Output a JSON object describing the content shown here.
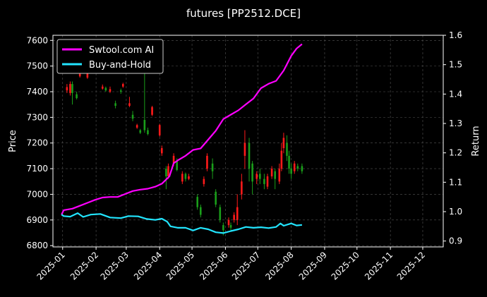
{
  "chart_data": {
    "type": "line",
    "title": "futures [PP2512.DCE]",
    "ylabel": "Price",
    "ylabel_right": "Return",
    "ylim": [
      6795,
      7620
    ],
    "ylim_right": [
      0.88,
      1.6
    ],
    "y_ticks": [
      6800,
      6900,
      7000,
      7100,
      7200,
      7300,
      7400,
      7500,
      7600
    ],
    "y_ticks_right": [
      "0.9",
      "1.0",
      "1.1",
      "1.2",
      "1.3",
      "1.4",
      "1.5",
      "1.6"
    ],
    "x_ticks": [
      "2025-01",
      "2025-02",
      "2025-03",
      "2025-04",
      "2025-05",
      "2025-06",
      "2025-07",
      "2025-08",
      "2025-09",
      "2025-10",
      "2025-11",
      "2025-12"
    ],
    "xlim": [
      "2024-12-23",
      "2025-12-20"
    ],
    "grid": true,
    "legend_position": "top-left",
    "colors": {
      "background": "#000000",
      "up": "#ff1a1a",
      "down": "#1a9e1a",
      "ai": "#ff00ff",
      "bh": "#22e5ff",
      "grid": "#555555"
    },
    "series": [
      {
        "name": "Swtool.com AI",
        "axis": "right",
        "color": "#ff00ff",
        "points": [
          [
            "2024-12-31",
            0.99
          ],
          [
            "2025-01-02",
            1.005
          ],
          [
            "2025-01-10",
            1.01
          ],
          [
            "2025-01-17",
            1.02
          ],
          [
            "2025-01-24",
            1.03
          ],
          [
            "2025-01-31",
            1.04
          ],
          [
            "2025-02-07",
            1.048
          ],
          [
            "2025-02-14",
            1.05
          ],
          [
            "2025-02-21",
            1.05
          ],
          [
            "2025-02-28",
            1.06
          ],
          [
            "2025-03-07",
            1.07
          ],
          [
            "2025-03-14",
            1.075
          ],
          [
            "2025-03-21",
            1.078
          ],
          [
            "2025-03-28",
            1.085
          ],
          [
            "2025-04-03",
            1.095
          ],
          [
            "2025-04-10",
            1.12
          ],
          [
            "2025-04-14",
            1.165
          ],
          [
            "2025-04-18",
            1.175
          ],
          [
            "2025-04-25",
            1.19
          ],
          [
            "2025-05-02",
            1.21
          ],
          [
            "2025-05-09",
            1.215
          ],
          [
            "2025-05-16",
            1.245
          ],
          [
            "2025-05-23",
            1.275
          ],
          [
            "2025-05-30",
            1.315
          ],
          [
            "2025-06-06",
            1.33
          ],
          [
            "2025-06-13",
            1.345
          ],
          [
            "2025-06-20",
            1.365
          ],
          [
            "2025-06-27",
            1.385
          ],
          [
            "2025-07-04",
            1.42
          ],
          [
            "2025-07-11",
            1.435
          ],
          [
            "2025-07-18",
            1.445
          ],
          [
            "2025-07-25",
            1.48
          ],
          [
            "2025-08-01",
            1.53
          ],
          [
            "2025-08-06",
            1.555
          ],
          [
            "2025-08-11",
            1.57
          ]
        ]
      },
      {
        "name": "Buy-and-Hold",
        "axis": "right",
        "color": "#22e5ff",
        "points": [
          [
            "2024-12-31",
            0.99
          ],
          [
            "2025-01-02",
            0.985
          ],
          [
            "2025-01-08",
            0.983
          ],
          [
            "2025-01-15",
            0.995
          ],
          [
            "2025-01-20",
            0.982
          ],
          [
            "2025-01-27",
            0.99
          ],
          [
            "2025-02-05",
            0.992
          ],
          [
            "2025-02-14",
            0.98
          ],
          [
            "2025-02-24",
            0.978
          ],
          [
            "2025-03-03",
            0.985
          ],
          [
            "2025-03-12",
            0.984
          ],
          [
            "2025-03-20",
            0.975
          ],
          [
            "2025-03-28",
            0.972
          ],
          [
            "2025-04-03",
            0.976
          ],
          [
            "2025-04-08",
            0.966
          ],
          [
            "2025-04-11",
            0.95
          ],
          [
            "2025-04-18",
            0.945
          ],
          [
            "2025-04-25",
            0.945
          ],
          [
            "2025-05-02",
            0.936
          ],
          [
            "2025-05-09",
            0.945
          ],
          [
            "2025-05-16",
            0.94
          ],
          [
            "2025-05-23",
            0.93
          ],
          [
            "2025-05-30",
            0.927
          ],
          [
            "2025-06-06",
            0.934
          ],
          [
            "2025-06-13",
            0.94
          ],
          [
            "2025-06-20",
            0.948
          ],
          [
            "2025-06-27",
            0.945
          ],
          [
            "2025-07-04",
            0.947
          ],
          [
            "2025-07-11",
            0.944
          ],
          [
            "2025-07-18",
            0.948
          ],
          [
            "2025-07-22",
            0.96
          ],
          [
            "2025-07-25",
            0.952
          ],
          [
            "2025-08-01",
            0.96
          ],
          [
            "2025-08-06",
            0.953
          ],
          [
            "2025-08-11",
            0.955
          ]
        ]
      }
    ],
    "candles": [
      [
        "2025-01-05",
        7405,
        7418,
        7430,
        7395
      ],
      [
        "2025-01-08",
        7395,
        7430,
        7440,
        7385
      ],
      [
        "2025-01-10",
        7430,
        7395,
        7440,
        7350
      ],
      [
        "2025-01-14",
        7390,
        7375,
        7400,
        7370
      ],
      [
        "2025-01-17",
        7460,
        7470,
        7480,
        7455
      ],
      [
        "2025-01-24",
        7455,
        7480,
        7490,
        7450
      ],
      [
        "2025-02-07",
        7412,
        7420,
        7428,
        7408
      ],
      [
        "2025-02-10",
        7415,
        7405,
        7420,
        7400
      ],
      [
        "2025-02-14",
        7400,
        7410,
        7420,
        7395
      ],
      [
        "2025-02-19",
        7355,
        7345,
        7365,
        7335
      ],
      [
        "2025-02-24",
        7405,
        7400,
        7412,
        7392
      ],
      [
        "2025-02-26",
        7420,
        7430,
        7435,
        7415
      ],
      [
        "2025-03-04",
        7345,
        7355,
        7380,
        7340
      ],
      [
        "2025-03-07",
        7310,
        7295,
        7325,
        7285
      ],
      [
        "2025-03-11",
        7260,
        7270,
        7275,
        7255
      ],
      [
        "2025-03-14",
        7250,
        7240,
        7255,
        7235
      ],
      [
        "2025-03-18",
        7290,
        7250,
        7490,
        7240
      ],
      [
        "2025-03-21",
        7250,
        7235,
        7260,
        7230
      ],
      [
        "2025-03-25",
        7310,
        7340,
        7345,
        7305
      ],
      [
        "2025-04-01",
        7230,
        7270,
        7275,
        7225
      ],
      [
        "2025-04-03",
        7160,
        7180,
        7190,
        7150
      ],
      [
        "2025-04-07",
        7100,
        7070,
        7110,
        7020
      ],
      [
        "2025-04-09",
        7070,
        7110,
        7120,
        7060
      ],
      [
        "2025-04-14",
        7120,
        7150,
        7160,
        7110
      ],
      [
        "2025-04-17",
        7130,
        7095,
        7140,
        7090
      ],
      [
        "2025-04-22",
        7050,
        7080,
        7090,
        7040
      ],
      [
        "2025-04-25",
        7080,
        7060,
        7085,
        7050
      ],
      [
        "2025-04-28",
        7060,
        7070,
        7080,
        7055
      ],
      [
        "2025-05-06",
        6990,
        6950,
        7000,
        6940
      ],
      [
        "2025-05-09",
        6950,
        6920,
        6960,
        6910
      ],
      [
        "2025-05-12",
        7040,
        7060,
        7070,
        7030
      ],
      [
        "2025-05-15",
        7100,
        7150,
        7160,
        7090
      ],
      [
        "2025-05-20",
        7120,
        7090,
        7140,
        7060
      ],
      [
        "2025-05-23",
        7010,
        6960,
        7020,
        6950
      ],
      [
        "2025-05-27",
        6950,
        6900,
        6960,
        6890
      ],
      [
        "2025-05-30",
        6880,
        6860,
        6890,
        6840
      ],
      [
        "2025-06-04",
        6880,
        6900,
        6910,
        6870
      ],
      [
        "2025-06-06",
        6880,
        6870,
        6890,
        6860
      ],
      [
        "2025-06-09",
        6900,
        6920,
        6930,
        6890
      ],
      [
        "2025-06-12",
        6900,
        6950,
        7000,
        6880
      ],
      [
        "2025-06-16",
        7000,
        7050,
        7080,
        6980
      ],
      [
        "2025-06-19",
        7150,
        7200,
        7250,
        7100
      ],
      [
        "2025-06-23",
        7200,
        7100,
        7220,
        7050
      ],
      [
        "2025-06-26",
        7120,
        7050,
        7130,
        7000
      ],
      [
        "2025-06-30",
        7060,
        7080,
        7090,
        7040
      ],
      [
        "2025-07-03",
        7080,
        7060,
        7100,
        7040
      ],
      [
        "2025-07-07",
        7060,
        7040,
        7080,
        7020
      ],
      [
        "2025-07-10",
        7030,
        7070,
        7080,
        7020
      ],
      [
        "2025-07-14",
        7070,
        7100,
        7110,
        7060
      ],
      [
        "2025-07-17",
        7090,
        7060,
        7100,
        7020
      ],
      [
        "2025-07-21",
        7050,
        7100,
        7120,
        7040
      ],
      [
        "2025-07-23",
        7100,
        7170,
        7200,
        7090
      ],
      [
        "2025-07-25",
        7180,
        7220,
        7240,
        7160
      ],
      [
        "2025-07-28",
        7200,
        7150,
        7230,
        7130
      ],
      [
        "2025-07-30",
        7150,
        7100,
        7170,
        7080
      ],
      [
        "2025-08-01",
        7100,
        7080,
        7120,
        7060
      ],
      [
        "2025-08-04",
        7090,
        7120,
        7130,
        7080
      ],
      [
        "2025-08-07",
        7110,
        7100,
        7120,
        7090
      ],
      [
        "2025-08-11",
        7110,
        7090,
        7120,
        7080
      ]
    ]
  }
}
